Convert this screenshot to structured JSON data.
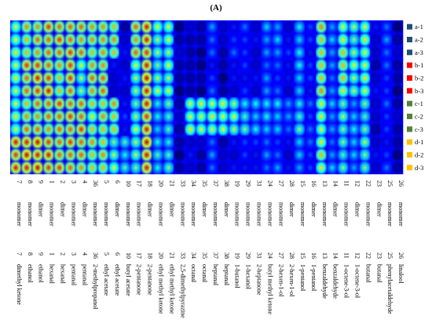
{
  "panel_label": "(A)",
  "chart_data": {
    "type": "heatmap",
    "title": "",
    "legend_placement": "right",
    "sample_rows": [
      {
        "label": "a-1",
        "color": "#1f4e79"
      },
      {
        "label": "a-2",
        "color": "#1f4e79"
      },
      {
        "label": "a-3",
        "color": "#1f4e79"
      },
      {
        "label": "b-1",
        "color": "#ff0000"
      },
      {
        "label": "b-2",
        "color": "#ff0000"
      },
      {
        "label": "b-3",
        "color": "#ff0000"
      },
      {
        "label": "c-1",
        "color": "#548235"
      },
      {
        "label": "c-2",
        "color": "#548235"
      },
      {
        "label": "c-3",
        "color": "#548235"
      },
      {
        "label": "d-1",
        "color": "#ffc000"
      },
      {
        "label": "d-2",
        "color": "#ffc000"
      },
      {
        "label": "d-3",
        "color": "#ffc000"
      }
    ],
    "columns": [
      {
        "number": "7",
        "form": "monomer",
        "compound": "dimethyl ketone"
      },
      {
        "number": "8",
        "form": "monomer",
        "compound": "ethanol"
      },
      {
        "number": "9",
        "form": "dimer",
        "compound": "ethanol"
      },
      {
        "number": "1",
        "form": "monomer",
        "compound": "hexanal"
      },
      {
        "number": "2",
        "form": "dimer",
        "compound": "hexanal"
      },
      {
        "number": "3",
        "form": "monomer",
        "compound": "pentanal"
      },
      {
        "number": "4",
        "form": "dimer",
        "compound": "pentanal"
      },
      {
        "number": "36",
        "form": "monomer",
        "compound": "2-methylpropanol"
      },
      {
        "number": "5",
        "form": "monomer",
        "compound": "ethyl acetate"
      },
      {
        "number": "6",
        "form": "dimer",
        "compound": "ethyl acetate"
      },
      {
        "number": "10",
        "form": "monomer",
        "compound": "butyl acetate"
      },
      {
        "number": "17",
        "form": "monomer",
        "compound": "2-pentanone"
      },
      {
        "number": "18",
        "form": "dimer",
        "compound": "2-pentanone"
      },
      {
        "number": "20",
        "form": "monomer",
        "compound": "ethyl methyl ketone"
      },
      {
        "number": "21",
        "form": "dimer",
        "compound": "ethyl methyl ketone"
      },
      {
        "number": "33",
        "form": "monomer",
        "compound": "2,5-dimethylpyrazine"
      },
      {
        "number": "34",
        "form": "monomer",
        "compound": "octanal"
      },
      {
        "number": "35",
        "form": "dimer",
        "compound": "octanal"
      },
      {
        "number": "37",
        "form": "monomer",
        "compound": "heptanal"
      },
      {
        "number": "38",
        "form": "dimer",
        "compound": "heptanal"
      },
      {
        "number": "19",
        "form": "monomer",
        "compound": "1-butanol"
      },
      {
        "number": "29",
        "form": "monomer",
        "compound": "1-hexanol"
      },
      {
        "number": "31",
        "form": "monomer",
        "compound": "2-heptanone"
      },
      {
        "number": "24",
        "form": "monomer",
        "compound": "butyl methyl ketone"
      },
      {
        "number": "27",
        "form": "monomer",
        "compound": "2-hexen-1-ol"
      },
      {
        "number": "28",
        "form": "dimer",
        "compound": "2-hexen-1-ol"
      },
      {
        "number": "15",
        "form": "monomer",
        "compound": "1-pentanol"
      },
      {
        "number": "16",
        "form": "dimer",
        "compound": "1-pentanol"
      },
      {
        "number": "13",
        "form": "monomer",
        "compound": "benzaldehyde"
      },
      {
        "number": "14",
        "form": "dimer",
        "compound": "benzaldehyde"
      },
      {
        "number": "11",
        "form": "monomer",
        "compound": "1-octene-3-ol"
      },
      {
        "number": "12",
        "form": "dimer",
        "compound": "1-octene-3-ol"
      },
      {
        "number": "22",
        "form": "monomer",
        "compound": "butanal"
      },
      {
        "number": "23",
        "form": "dimer",
        "compound": "butanal"
      },
      {
        "number": "25",
        "form": "monomer",
        "compound": "phenylacetaldehyde"
      },
      {
        "number": "26",
        "form": "monomer",
        "compound": "linalool"
      }
    ],
    "group_intensity": [
      [
        0.62,
        0.72,
        0.78,
        0.8,
        0.8,
        0.82,
        0.8,
        0.74,
        0.74,
        0.7,
        0.1,
        0.8,
        0.9,
        0.55,
        0.58,
        0.05,
        0.06,
        0.04,
        0.25,
        0.08,
        0.2,
        0.22,
        0.12,
        0.3,
        0.3,
        0.15,
        0.4,
        0.2,
        0.7,
        0.3,
        0.65,
        0.55,
        0.62,
        0.1,
        0.25,
        0.05
      ],
      [
        0.62,
        0.8,
        0.85,
        0.85,
        0.72,
        0.85,
        0.55,
        0.75,
        0.78,
        0.12,
        0.12,
        0.55,
        0.9,
        0.55,
        0.6,
        0.05,
        0.04,
        0.02,
        0.2,
        0.05,
        0.15,
        0.18,
        0.1,
        0.28,
        0.25,
        0.15,
        0.35,
        0.18,
        0.72,
        0.3,
        0.7,
        0.55,
        0.62,
        0.1,
        0.22,
        0.05
      ],
      [
        0.6,
        0.75,
        0.8,
        0.8,
        0.8,
        0.8,
        0.82,
        0.7,
        0.72,
        0.7,
        0.15,
        0.55,
        0.9,
        0.4,
        0.45,
        0.05,
        0.62,
        0.62,
        0.62,
        0.6,
        0.55,
        0.45,
        0.4,
        0.4,
        0.35,
        0.28,
        0.45,
        0.25,
        0.65,
        0.3,
        0.5,
        0.35,
        0.5,
        0.1,
        0.2,
        0.05
      ],
      [
        0.9,
        0.92,
        0.92,
        0.85,
        0.82,
        0.82,
        0.8,
        0.7,
        0.72,
        0.55,
        0.45,
        0.55,
        0.9,
        0.4,
        0.45,
        0.05,
        0.12,
        0.05,
        0.25,
        0.08,
        0.15,
        0.2,
        0.15,
        0.25,
        0.25,
        0.15,
        0.35,
        0.2,
        0.65,
        0.3,
        0.5,
        0.35,
        0.5,
        0.1,
        0.2,
        0.05
      ]
    ]
  }
}
